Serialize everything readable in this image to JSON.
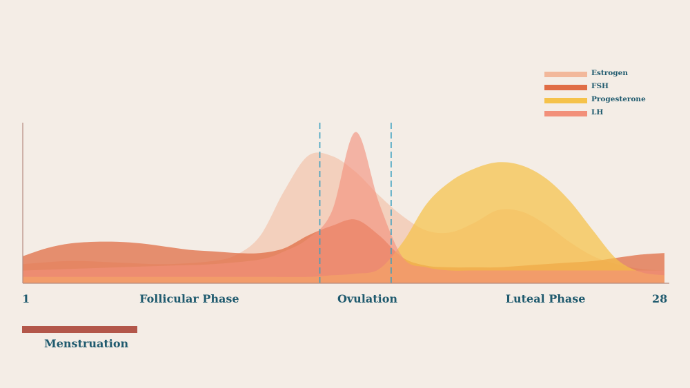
{
  "chart_data": {
    "type": "area",
    "title": "",
    "xlabel": "",
    "ylabel": "",
    "x_range": [
      1,
      28
    ],
    "x_tick_labels": [
      {
        "day": 1,
        "label": "1"
      },
      {
        "day": 28,
        "label": "28"
      }
    ],
    "phase_labels": [
      {
        "center_day": 8.0,
        "label": "Follicular Phase"
      },
      {
        "center_day": 15.5,
        "label": "Ovulation"
      },
      {
        "center_day": 23.0,
        "label": "Luteal Phase"
      }
    ],
    "ovulation_window_days": [
      13.5,
      16.5
    ],
    "menstruation": {
      "start_day": 1,
      "end_day": 6,
      "label": "Menstruation"
    },
    "ylim": [
      0,
      100
    ],
    "grid": false,
    "legend_position": "top-right",
    "series": [
      {
        "name": "Estrogen",
        "color": "#f2b89b",
        "fill_opacity": 0.55,
        "x": [
          1,
          3,
          5,
          7,
          9,
          10,
          11,
          12,
          13,
          14,
          15,
          16,
          17,
          18,
          19,
          20,
          21,
          22,
          23,
          24,
          25,
          26,
          27,
          28
        ],
        "y": [
          12,
          14,
          13,
          12,
          14,
          18,
          30,
          58,
          80,
          80,
          70,
          55,
          42,
          33,
          32,
          38,
          46,
          45,
          37,
          26,
          17,
          12,
          9,
          8
        ]
      },
      {
        "name": "FSH",
        "color": "#e06d45",
        "fill_opacity": 0.75,
        "x": [
          1,
          2,
          3,
          4,
          5,
          6,
          7,
          8,
          9,
          10,
          11,
          12,
          13,
          14,
          15,
          16,
          17,
          18,
          19,
          20,
          21,
          22,
          23,
          24,
          25,
          26,
          27,
          28
        ],
        "y": [
          17,
          22,
          25,
          26,
          26,
          25,
          23,
          21,
          20,
          19,
          19,
          22,
          30,
          36,
          40,
          30,
          16,
          11,
          10,
          10,
          10,
          11,
          12,
          13,
          14,
          16,
          18,
          19
        ]
      },
      {
        "name": "Progesterone",
        "color": "#f5c24a",
        "fill_opacity": 0.72,
        "x": [
          1,
          3,
          5,
          7,
          9,
          11,
          13,
          14,
          15,
          16,
          17,
          18,
          19,
          20,
          21,
          22,
          23,
          24,
          25,
          26,
          27,
          28
        ],
        "y": [
          4,
          4,
          4,
          4,
          4,
          4,
          4,
          5,
          6,
          9,
          26,
          50,
          64,
          72,
          76,
          74,
          66,
          52,
          33,
          15,
          7,
          5
        ]
      },
      {
        "name": "LH",
        "color": "#f2907a",
        "fill_opacity": 0.62,
        "x": [
          1,
          3,
          5,
          7,
          9,
          11,
          12,
          13,
          14,
          15,
          16,
          17,
          18,
          19,
          20,
          22,
          24,
          26,
          28
        ],
        "y": [
          8,
          9,
          10,
          11,
          12,
          15,
          20,
          28,
          45,
          95,
          50,
          16,
          10,
          8,
          8,
          8,
          8,
          8,
          8
        ]
      }
    ]
  }
}
